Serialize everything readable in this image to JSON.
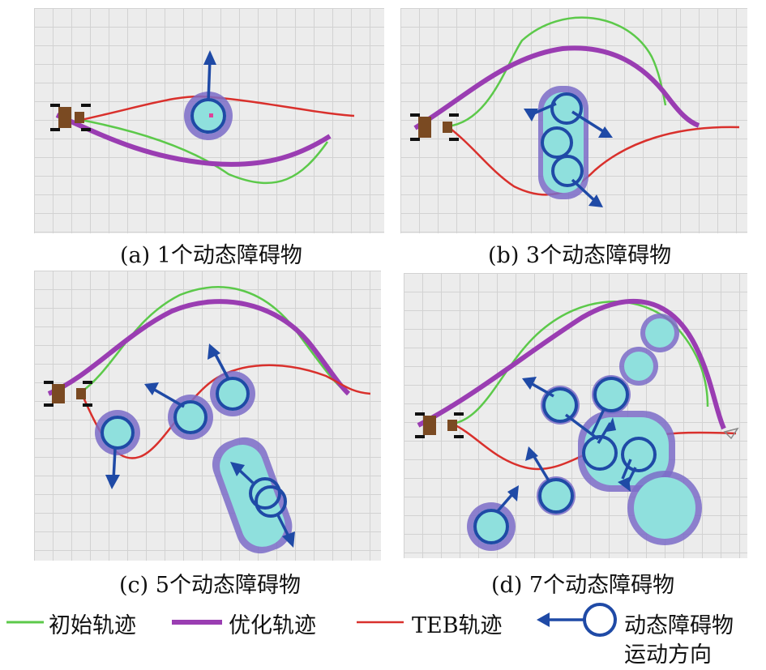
{
  "captions": {
    "a": "(a) 1个动态障碍物",
    "b": "(b) 3个动态障碍物",
    "c": "(c) 5个动态障碍物",
    "d": "(d) 7个动态障碍物"
  },
  "legend": {
    "initial": "初始轨迹",
    "optimized": "优化轨迹",
    "teb": "TEB轨迹",
    "obstacle_line1": "动态障碍物",
    "obstacle_line2": "运动方向"
  },
  "colors": {
    "initial": "#5cc94a",
    "optimized": "#9a3db2",
    "teb": "#d9302c",
    "obstacle_ring": "#1f4aa6",
    "obstacle_fill": "#8fe0dd",
    "obstacle_halo": "#7b6cc8",
    "grid_bg": "#ececec"
  }
}
